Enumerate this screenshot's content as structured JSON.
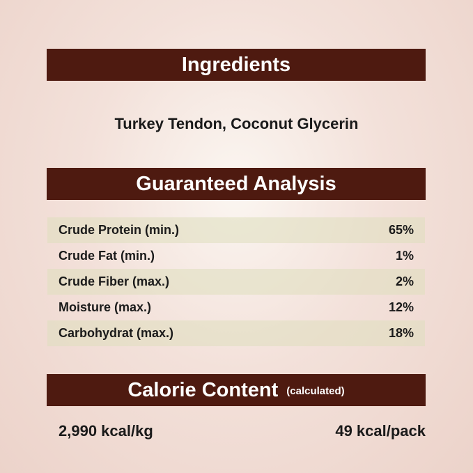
{
  "ingredients": {
    "title": "Ingredients",
    "text": "Turkey Tendon, Coconut Glycerin"
  },
  "analysis": {
    "title": "Guaranteed Analysis",
    "rows": [
      {
        "label": "Crude Protein (min.)",
        "value": "65%"
      },
      {
        "label": "Crude Fat (min.)",
        "value": "1%"
      },
      {
        "label": "Crude Fiber (max.)",
        "value": "2%"
      },
      {
        "label": "Moisture (max.)",
        "value": "12%"
      },
      {
        "label": "Carbohydrat (max.)",
        "value": "18%"
      }
    ]
  },
  "calorie": {
    "title": "Calorie Content",
    "subtitle": "(calculated)",
    "per_kg": "2,990 kcal/kg",
    "per_pack": "49 kcal/pack"
  },
  "colors": {
    "banner": "#4e1a10",
    "stripe": "#e4e2c4"
  }
}
